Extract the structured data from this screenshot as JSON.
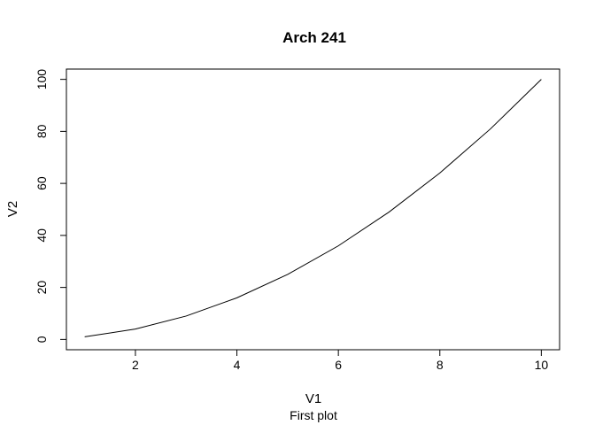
{
  "chart_data": {
    "type": "line",
    "title": "Arch 241",
    "xlabel": "V1",
    "ylabel": "V2",
    "subtitle": "First plot",
    "xlim": [
      0.64,
      10.36
    ],
    "ylim": [
      -3.96,
      103.96
    ],
    "xticks": [
      2,
      4,
      6,
      8,
      10
    ],
    "yticks": [
      0,
      20,
      40,
      60,
      80,
      100
    ],
    "grid": false,
    "series": [
      {
        "x": [
          1,
          2,
          3,
          4,
          5,
          6,
          7,
          8,
          9,
          10
        ],
        "y": [
          1,
          4,
          9,
          16,
          25,
          36,
          49,
          64,
          81,
          100
        ],
        "color": "#000000"
      }
    ]
  }
}
